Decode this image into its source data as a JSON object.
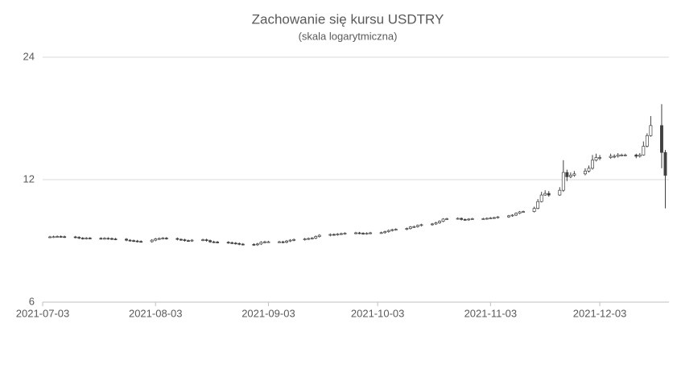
{
  "chart_data": {
    "type": "candlestick",
    "title": "Zachowanie się kursu USDTRY",
    "subtitle": "(skala logarytmiczna)",
    "log_scale": true,
    "grid": true,
    "up_color": "#ffffff",
    "down_color": "#404040",
    "edge_color": "#404040",
    "xlim": [
      "2021-07-03",
      "2021-12-22"
    ],
    "xticks": [
      "2021-07-03",
      "2021-08-03",
      "2021-09-03",
      "2021-10-03",
      "2021-11-03",
      "2021-12-03"
    ],
    "ylim": [
      6,
      24
    ],
    "yticks": [
      6,
      12,
      24
    ],
    "x": [
      "2021-07-05",
      "2021-07-06",
      "2021-07-07",
      "2021-07-08",
      "2021-07-09",
      "2021-07-12",
      "2021-07-13",
      "2021-07-14",
      "2021-07-15",
      "2021-07-16",
      "2021-07-19",
      "2021-07-20",
      "2021-07-21",
      "2021-07-22",
      "2021-07-23",
      "2021-07-26",
      "2021-07-27",
      "2021-07-28",
      "2021-07-29",
      "2021-07-30",
      "2021-08-02",
      "2021-08-03",
      "2021-08-04",
      "2021-08-05",
      "2021-08-06",
      "2021-08-09",
      "2021-08-10",
      "2021-08-11",
      "2021-08-12",
      "2021-08-13",
      "2021-08-16",
      "2021-08-17",
      "2021-08-18",
      "2021-08-19",
      "2021-08-20",
      "2021-08-23",
      "2021-08-24",
      "2021-08-25",
      "2021-08-26",
      "2021-08-27",
      "2021-08-30",
      "2021-08-31",
      "2021-09-01",
      "2021-09-02",
      "2021-09-03",
      "2021-09-06",
      "2021-09-07",
      "2021-09-08",
      "2021-09-09",
      "2021-09-10",
      "2021-09-13",
      "2021-09-14",
      "2021-09-15",
      "2021-09-16",
      "2021-09-17",
      "2021-09-20",
      "2021-09-21",
      "2021-09-22",
      "2021-09-23",
      "2021-09-24",
      "2021-09-27",
      "2021-09-28",
      "2021-09-29",
      "2021-09-30",
      "2021-10-01",
      "2021-10-04",
      "2021-10-05",
      "2021-10-06",
      "2021-10-07",
      "2021-10-08",
      "2021-10-11",
      "2021-10-12",
      "2021-10-13",
      "2021-10-14",
      "2021-10-15",
      "2021-10-18",
      "2021-10-19",
      "2021-10-20",
      "2021-10-21",
      "2021-10-22",
      "2021-10-25",
      "2021-10-26",
      "2021-10-27",
      "2021-10-28",
      "2021-10-29",
      "2021-11-01",
      "2021-11-02",
      "2021-11-03",
      "2021-11-04",
      "2021-11-05",
      "2021-11-08",
      "2021-11-09",
      "2021-11-10",
      "2021-11-11",
      "2021-11-12",
      "2021-11-15",
      "2021-11-16",
      "2021-11-17",
      "2021-11-18",
      "2021-11-19",
      "2021-11-22",
      "2021-11-23",
      "2021-11-24",
      "2021-11-25",
      "2021-11-26",
      "2021-11-29",
      "2021-11-30",
      "2021-12-01",
      "2021-12-02",
      "2021-12-03",
      "2021-12-06",
      "2021-12-07",
      "2021-12-08",
      "2021-12-09",
      "2021-12-10",
      "2021-12-13",
      "2021-12-14",
      "2021-12-15",
      "2021-12-16",
      "2021-12-17",
      "2021-12-20",
      "2021-12-21"
    ],
    "open": [
      8.67,
      8.68,
      8.69,
      8.7,
      8.69,
      8.68,
      8.66,
      8.62,
      8.6,
      8.62,
      8.61,
      8.6,
      8.61,
      8.6,
      8.58,
      8.57,
      8.52,
      8.5,
      8.48,
      8.46,
      8.45,
      8.52,
      8.58,
      8.6,
      8.62,
      8.6,
      8.56,
      8.54,
      8.5,
      8.49,
      8.52,
      8.54,
      8.5,
      8.44,
      8.43,
      8.42,
      8.4,
      8.38,
      8.36,
      8.33,
      8.32,
      8.3,
      8.34,
      8.42,
      8.44,
      8.44,
      8.44,
      8.42,
      8.48,
      8.52,
      8.55,
      8.58,
      8.6,
      8.62,
      8.7,
      8.76,
      8.8,
      8.79,
      8.82,
      8.84,
      8.86,
      8.88,
      8.86,
      8.84,
      8.86,
      8.88,
      8.89,
      8.94,
      9.0,
      9.04,
      9.06,
      9.1,
      9.18,
      9.2,
      9.26,
      9.3,
      9.34,
      9.4,
      9.48,
      9.6,
      9.62,
      9.64,
      9.58,
      9.56,
      9.6,
      9.62,
      9.62,
      9.64,
      9.66,
      9.68,
      9.72,
      9.78,
      9.82,
      9.92,
      10.0,
      10.02,
      10.2,
      10.6,
      11.0,
      11.1,
      11.0,
      11.3,
      12.5,
      12.2,
      12.3,
      12.4,
      12.6,
      12.8,
      13.4,
      13.6,
      13.6,
      13.7,
      13.7,
      13.8,
      13.8,
      13.8,
      13.7,
      13.8,
      14.5,
      15.4,
      16.3,
      14.0
    ],
    "high": [
      8.73,
      8.74,
      8.75,
      8.75,
      8.74,
      8.73,
      8.71,
      8.67,
      8.67,
      8.67,
      8.66,
      8.66,
      8.66,
      8.65,
      8.63,
      8.62,
      8.57,
      8.55,
      8.53,
      8.51,
      8.57,
      8.63,
      8.65,
      8.67,
      8.67,
      8.65,
      8.61,
      8.59,
      8.55,
      8.57,
      8.59,
      8.59,
      8.55,
      8.49,
      8.48,
      8.47,
      8.45,
      8.43,
      8.41,
      8.38,
      8.37,
      8.39,
      8.47,
      8.49,
      8.49,
      8.49,
      8.49,
      8.53,
      8.57,
      8.6,
      8.63,
      8.65,
      8.67,
      8.75,
      8.81,
      8.85,
      8.85,
      8.87,
      8.89,
      8.91,
      8.93,
      8.93,
      8.91,
      8.91,
      8.93,
      8.94,
      8.99,
      9.05,
      9.09,
      9.11,
      9.15,
      9.23,
      9.25,
      9.31,
      9.35,
      9.39,
      9.45,
      9.53,
      9.65,
      9.67,
      9.69,
      9.69,
      9.63,
      9.65,
      9.67,
      9.67,
      9.69,
      9.71,
      9.73,
      9.77,
      9.83,
      9.87,
      9.97,
      10.05,
      10.07,
      10.3,
      10.75,
      11.2,
      11.3,
      11.25,
      11.5,
      13.4,
      12.7,
      12.5,
      12.6,
      12.8,
      13.0,
      13.8,
      13.9,
      13.8,
      13.9,
      13.85,
      13.95,
      13.9,
      13.9,
      13.9,
      13.95,
      14.9,
      15.6,
      17.2,
      18.4,
      14.2
    ],
    "low": [
      8.62,
      8.63,
      8.64,
      8.64,
      8.63,
      8.61,
      8.57,
      8.55,
      8.55,
      8.56,
      8.55,
      8.55,
      8.55,
      8.53,
      8.52,
      8.47,
      8.45,
      8.43,
      8.41,
      8.4,
      8.4,
      8.47,
      8.53,
      8.55,
      8.55,
      8.51,
      8.49,
      8.45,
      8.44,
      8.44,
      8.47,
      8.45,
      8.39,
      8.38,
      8.37,
      8.35,
      8.33,
      8.31,
      8.28,
      8.27,
      8.25,
      8.25,
      8.29,
      8.37,
      8.39,
      8.39,
      8.37,
      8.37,
      8.43,
      8.47,
      8.5,
      8.53,
      8.55,
      8.57,
      8.65,
      8.71,
      8.74,
      8.74,
      8.77,
      8.79,
      8.81,
      8.81,
      8.79,
      8.79,
      8.81,
      8.83,
      8.84,
      8.89,
      8.95,
      8.99,
      9.01,
      9.05,
      9.13,
      9.15,
      9.21,
      9.25,
      9.29,
      9.35,
      9.43,
      9.55,
      9.57,
      9.53,
      9.51,
      9.51,
      9.55,
      9.57,
      9.57,
      9.59,
      9.61,
      9.63,
      9.67,
      9.73,
      9.77,
      9.87,
      9.95,
      9.97,
      10.15,
      10.55,
      10.95,
      10.9,
      10.95,
      11.2,
      11.9,
      12.1,
      12.2,
      12.3,
      12.5,
      12.7,
      13.3,
      13.4,
      13.5,
      13.55,
      13.6,
      13.7,
      13.7,
      13.55,
      13.6,
      13.75,
      14.4,
      15.3,
      12.8,
      10.2
    ],
    "close": [
      8.68,
      8.69,
      8.7,
      8.69,
      8.68,
      8.66,
      8.62,
      8.6,
      8.62,
      8.61,
      8.6,
      8.61,
      8.6,
      8.58,
      8.57,
      8.52,
      8.5,
      8.48,
      8.46,
      8.45,
      8.52,
      8.58,
      8.6,
      8.62,
      8.6,
      8.56,
      8.54,
      8.5,
      8.49,
      8.52,
      8.54,
      8.5,
      8.44,
      8.43,
      8.42,
      8.4,
      8.38,
      8.36,
      8.33,
      8.32,
      8.3,
      8.34,
      8.42,
      8.44,
      8.44,
      8.44,
      8.42,
      8.48,
      8.52,
      8.55,
      8.58,
      8.6,
      8.62,
      8.7,
      8.76,
      8.8,
      8.79,
      8.82,
      8.84,
      8.86,
      8.88,
      8.86,
      8.84,
      8.86,
      8.88,
      8.89,
      8.94,
      9.0,
      9.04,
      9.06,
      9.1,
      9.18,
      9.2,
      9.26,
      9.3,
      9.34,
      9.4,
      9.48,
      9.6,
      9.62,
      9.64,
      9.58,
      9.56,
      9.6,
      9.62,
      9.62,
      9.64,
      9.66,
      9.68,
      9.72,
      9.78,
      9.82,
      9.92,
      10.0,
      10.02,
      10.2,
      10.6,
      11.0,
      11.1,
      11.0,
      11.3,
      12.5,
      12.2,
      12.3,
      12.4,
      12.6,
      12.8,
      13.4,
      13.6,
      13.6,
      13.7,
      13.7,
      13.8,
      13.8,
      13.8,
      13.7,
      13.8,
      14.5,
      15.4,
      16.3,
      14.0,
      12.3
    ]
  }
}
